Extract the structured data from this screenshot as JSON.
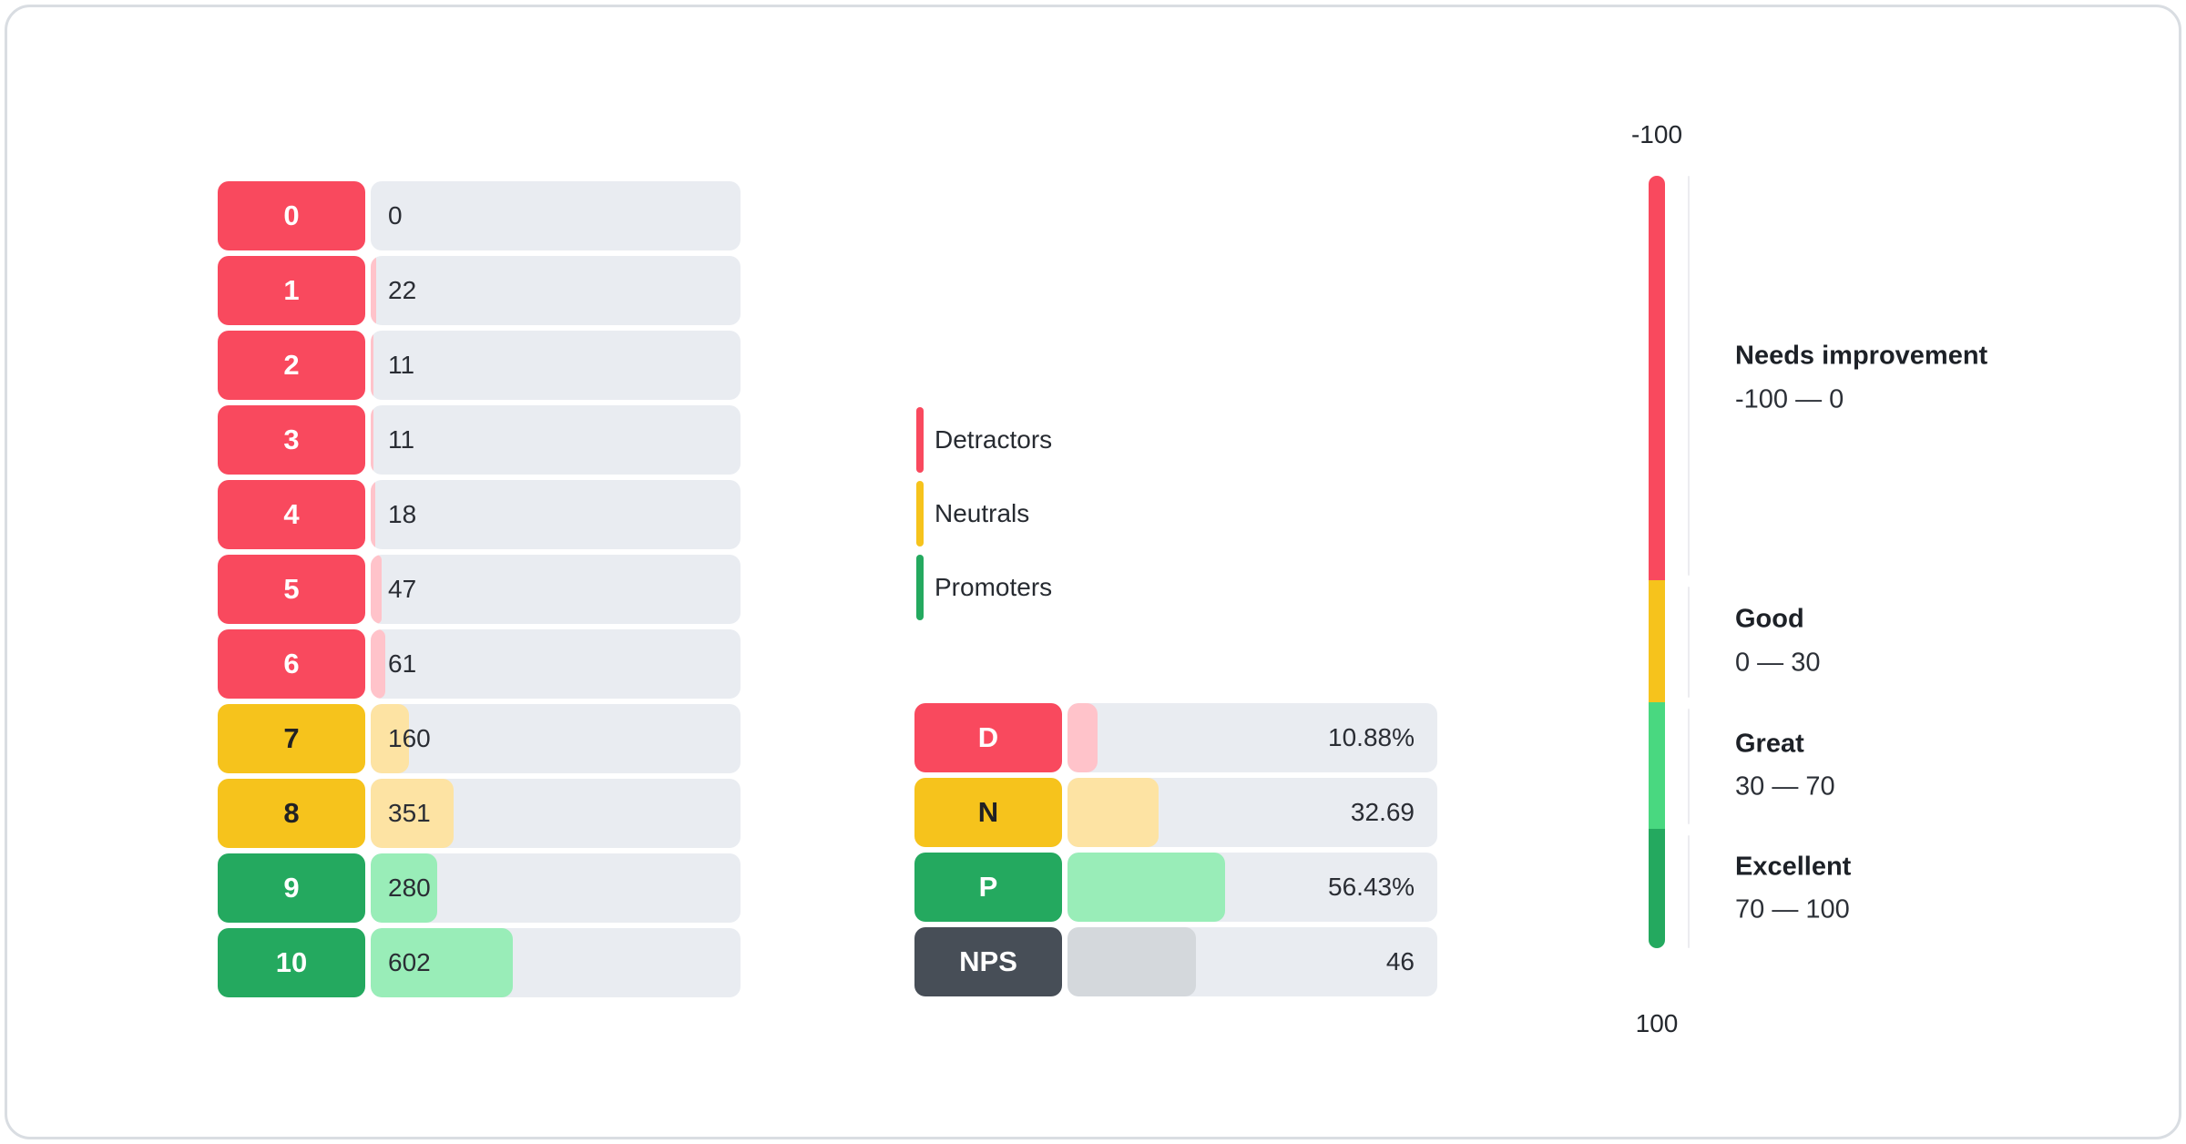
{
  "colors": {
    "track": "#e9ecf1",
    "tick_line": "#ececf0",
    "card_border": "#d9dde2",
    "group": {
      "detractor": {
        "solid": "#f9495e",
        "fill": "#ffc3ca",
        "text": "#ffffff"
      },
      "neutral": {
        "solid": "#f6c31c",
        "fill": "#fde3a3",
        "text": "#212124"
      },
      "promoter": {
        "solid": "#24a95f",
        "fill": "#99edb8",
        "text": "#ffffff"
      },
      "nps": {
        "solid": "#474e57",
        "fill": "#d4d8dc",
        "text": "#ffffff"
      }
    }
  },
  "score_rows": [
    {
      "label": "0",
      "value": "0",
      "count": 0,
      "group": "detractor"
    },
    {
      "label": "1",
      "value": "22",
      "count": 22,
      "group": "detractor"
    },
    {
      "label": "2",
      "value": "11",
      "count": 11,
      "group": "detractor"
    },
    {
      "label": "3",
      "value": "11",
      "count": 11,
      "group": "detractor"
    },
    {
      "label": "4",
      "value": "18",
      "count": 18,
      "group": "detractor"
    },
    {
      "label": "5",
      "value": "47",
      "count": 47,
      "group": "detractor"
    },
    {
      "label": "6",
      "value": "61",
      "count": 61,
      "group": "detractor"
    },
    {
      "label": "7",
      "value": "160",
      "count": 160,
      "group": "neutral"
    },
    {
      "label": "8",
      "value": "351",
      "count": 351,
      "group": "neutral"
    },
    {
      "label": "9",
      "value": "280",
      "count": 280,
      "group": "promoter"
    },
    {
      "label": "10",
      "value": "602",
      "count": 602,
      "group": "promoter"
    }
  ],
  "legend": [
    {
      "label": "Detractors",
      "color": "#f9495e"
    },
    {
      "label": "Neutrals",
      "color": "#f6c31c"
    },
    {
      "label": "Promoters",
      "color": "#24a95f"
    }
  ],
  "summary_rows": [
    {
      "label": "D",
      "value": "10.88%",
      "num": 10.88,
      "group": "detractor"
    },
    {
      "label": "N",
      "value": "32.69",
      "num": 32.69,
      "group": "neutral"
    },
    {
      "label": "P",
      "value": "56.43%",
      "num": 56.43,
      "group": "promoter"
    },
    {
      "label": "NPS",
      "value": "46",
      "num": 46,
      "group": "nps"
    }
  ],
  "gauge": {
    "top_label": "-100",
    "bottom_label": "100",
    "segments": [
      {
        "name": "Needs improvement",
        "range": "-100 — 0",
        "from": -100,
        "to": 0,
        "color": "#f9495e",
        "height_pct": 52.4
      },
      {
        "name": "Good",
        "range": "0 — 30",
        "from": 0,
        "to": 30,
        "color": "#f6c31c",
        "height_pct": 15.8
      },
      {
        "name": "Great",
        "range": "30 — 70",
        "from": 30,
        "to": 70,
        "color": "#49d880",
        "height_pct": 16.4
      },
      {
        "name": "Excellent",
        "range": "70 — 100",
        "from": 70,
        "to": 100,
        "color": "#24a95f",
        "height_pct": 15.4
      }
    ]
  },
  "chart_data": [
    {
      "type": "bar",
      "orientation": "horizontal",
      "categories": [
        0,
        1,
        2,
        3,
        4,
        5,
        6,
        7,
        8,
        9,
        10
      ],
      "values": [
        0,
        22,
        11,
        11,
        18,
        47,
        61,
        160,
        351,
        280,
        602
      ],
      "group_by_category": [
        "detractor",
        "detractor",
        "detractor",
        "detractor",
        "detractor",
        "detractor",
        "detractor",
        "neutral",
        "neutral",
        "promoter",
        "promoter"
      ],
      "legend": [
        "Detractors",
        "Neutrals",
        "Promoters"
      ],
      "legend_position": "right",
      "grid": false
    },
    {
      "type": "bar",
      "orientation": "horizontal",
      "categories": [
        "D",
        "N",
        "P",
        "NPS"
      ],
      "values": [
        10.88,
        32.69,
        56.43,
        46
      ],
      "value_labels": [
        "10.88%",
        "32.69",
        "56.43%",
        "46"
      ],
      "grid": false
    },
    {
      "type": "gauge",
      "orientation": "vertical",
      "axis_range": [
        -100,
        100
      ],
      "axis_labels": [
        "-100",
        "100"
      ],
      "bands": [
        {
          "label": "Needs improvement",
          "from": -100,
          "to": 0
        },
        {
          "label": "Good",
          "from": 0,
          "to": 30
        },
        {
          "label": "Great",
          "from": 30,
          "to": 70
        },
        {
          "label": "Excellent",
          "from": 70,
          "to": 100
        }
      ]
    }
  ]
}
